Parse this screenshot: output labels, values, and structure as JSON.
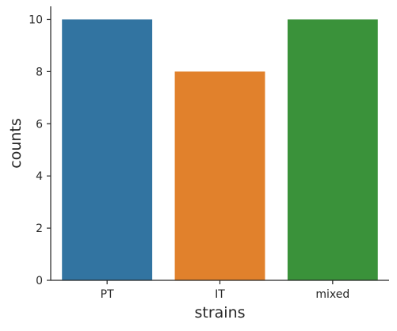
{
  "chart_data": {
    "type": "bar",
    "xlabel": "strains",
    "ylabel": "counts",
    "categories": [
      "PT",
      "IT",
      "mixed"
    ],
    "values": [
      10,
      8,
      10
    ],
    "ylim": [
      0,
      10.5
    ],
    "yticks": [
      "0",
      "2",
      "4",
      "6",
      "8",
      "10"
    ],
    "colors": [
      "#3274a1",
      "#e1812c",
      "#3a923a"
    ],
    "grid": false,
    "legend": "none"
  }
}
